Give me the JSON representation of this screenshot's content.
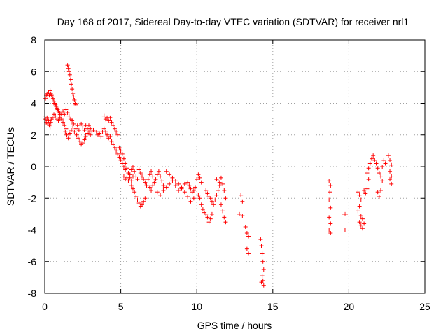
{
  "chart_data": {
    "type": "scatter",
    "title": "Day 168 of 2017, Sidereal Day-to-day VTEC variation (SDTVAR) for receiver nrl1",
    "xlabel": "GPS time / hours",
    "ylabel": "SDTVAR / TECUs",
    "xlim": [
      0,
      25
    ],
    "ylim": [
      -8,
      8
    ],
    "grid": true,
    "marker": "+",
    "marker_color": "#ff0000",
    "x_ticks": [
      {
        "value": 0,
        "label": "0"
      },
      {
        "value": 5,
        "label": "5"
      },
      {
        "value": 10,
        "label": "10"
      },
      {
        "value": 15,
        "label": "15"
      },
      {
        "value": 20,
        "label": "20"
      },
      {
        "value": 25,
        "label": "25"
      }
    ],
    "y_ticks": [
      {
        "value": -8,
        "label": "-8"
      },
      {
        "value": -6,
        "label": "-6"
      },
      {
        "value": -4,
        "label": "-4"
      },
      {
        "value": -2,
        "label": "-2"
      },
      {
        "value": 0,
        "label": "0"
      },
      {
        "value": 2,
        "label": "2"
      },
      {
        "value": 4,
        "label": "4"
      },
      {
        "value": 6,
        "label": "6"
      },
      {
        "value": 8,
        "label": "8"
      }
    ],
    "series": [
      {
        "name": "SDTVAR",
        "points": [
          [
            0.0,
            3.2
          ],
          [
            0.05,
            3.0
          ],
          [
            0.1,
            2.8
          ],
          [
            0.15,
            3.1
          ],
          [
            0.2,
            2.7
          ],
          [
            0.25,
            2.9
          ],
          [
            0.3,
            2.6
          ],
          [
            0.35,
            2.5
          ],
          [
            0.4,
            2.8
          ],
          [
            0.45,
            3.0
          ],
          [
            0.05,
            4.3
          ],
          [
            0.1,
            4.5
          ],
          [
            0.15,
            4.6
          ],
          [
            0.2,
            4.4
          ],
          [
            0.25,
            4.7
          ],
          [
            0.3,
            4.5
          ],
          [
            0.35,
            4.8
          ],
          [
            0.4,
            4.6
          ],
          [
            0.45,
            4.5
          ],
          [
            0.5,
            4.4
          ],
          [
            0.55,
            4.3
          ],
          [
            0.6,
            4.1
          ],
          [
            0.65,
            4.0
          ],
          [
            0.7,
            3.9
          ],
          [
            0.75,
            3.8
          ],
          [
            0.8,
            3.7
          ],
          [
            0.85,
            3.6
          ],
          [
            0.9,
            3.5
          ],
          [
            0.95,
            3.4
          ],
          [
            1.0,
            3.3
          ],
          [
            0.5,
            3.1
          ],
          [
            0.6,
            3.3
          ],
          [
            0.7,
            3.2
          ],
          [
            0.8,
            3.0
          ],
          [
            0.9,
            2.9
          ],
          [
            1.0,
            3.1
          ],
          [
            1.1,
            3.0
          ],
          [
            1.2,
            2.8
          ],
          [
            1.3,
            2.6
          ],
          [
            1.4,
            2.4
          ],
          [
            1.0,
            3.4
          ],
          [
            1.1,
            3.3
          ],
          [
            1.2,
            3.5
          ],
          [
            1.3,
            3.3
          ],
          [
            1.4,
            3.6
          ],
          [
            1.5,
            3.4
          ],
          [
            1.6,
            3.2
          ],
          [
            1.7,
            3.0
          ],
          [
            1.8,
            2.9
          ],
          [
            1.9,
            2.7
          ],
          [
            1.35,
            2.2
          ],
          [
            1.45,
            2.0
          ],
          [
            1.55,
            1.8
          ],
          [
            1.65,
            2.1
          ],
          [
            1.75,
            2.3
          ],
          [
            1.85,
            2.5
          ],
          [
            1.95,
            2.2
          ],
          [
            2.05,
            2.4
          ],
          [
            2.15,
            2.6
          ],
          [
            2.25,
            2.3
          ],
          [
            1.5,
            6.4
          ],
          [
            1.55,
            6.2
          ],
          [
            1.6,
            6.0
          ],
          [
            1.65,
            5.8
          ],
          [
            1.7,
            5.5
          ],
          [
            1.75,
            5.2
          ],
          [
            1.8,
            4.9
          ],
          [
            1.85,
            4.6
          ],
          [
            1.9,
            4.4
          ],
          [
            1.95,
            4.2
          ],
          [
            2.0,
            4.0
          ],
          [
            2.05,
            3.9
          ],
          [
            2.1,
            2.0
          ],
          [
            2.2,
            1.8
          ],
          [
            2.3,
            1.6
          ],
          [
            2.4,
            1.4
          ],
          [
            2.5,
            1.5
          ],
          [
            2.6,
            1.7
          ],
          [
            2.7,
            1.9
          ],
          [
            2.8,
            2.1
          ],
          [
            2.9,
            2.2
          ],
          [
            3.0,
            2.0
          ],
          [
            2.4,
            2.7
          ],
          [
            2.5,
            2.5
          ],
          [
            2.6,
            2.3
          ],
          [
            2.7,
            2.6
          ],
          [
            2.8,
            2.4
          ],
          [
            2.9,
            2.6
          ],
          [
            3.0,
            2.4
          ],
          [
            3.1,
            2.2
          ],
          [
            3.2,
            2.3
          ],
          [
            3.4,
            2.2
          ],
          [
            3.5,
            2.0
          ],
          [
            3.6,
            2.1
          ],
          [
            3.7,
            1.9
          ],
          [
            3.8,
            2.2
          ],
          [
            3.9,
            2.4
          ],
          [
            4.0,
            2.2
          ],
          [
            4.1,
            2.0
          ],
          [
            4.2,
            1.8
          ],
          [
            4.3,
            1.9
          ],
          [
            3.9,
            3.2
          ],
          [
            4.0,
            3.0
          ],
          [
            4.1,
            3.1
          ],
          [
            4.2,
            2.9
          ],
          [
            4.3,
            3.1
          ],
          [
            4.4,
            2.8
          ],
          [
            4.5,
            2.6
          ],
          [
            4.6,
            2.4
          ],
          [
            4.7,
            2.2
          ],
          [
            4.8,
            2.0
          ],
          [
            4.4,
            1.6
          ],
          [
            4.5,
            1.4
          ],
          [
            4.6,
            1.2
          ],
          [
            4.7,
            1.0
          ],
          [
            4.8,
            0.8
          ],
          [
            4.9,
            0.6
          ],
          [
            5.0,
            0.4
          ],
          [
            5.1,
            0.2
          ],
          [
            5.2,
            0.0
          ],
          [
            5.3,
            -0.2
          ],
          [
            4.9,
            1.2
          ],
          [
            5.0,
            1.0
          ],
          [
            5.1,
            0.8
          ],
          [
            5.2,
            0.5
          ],
          [
            5.3,
            0.2
          ],
          [
            5.4,
            -0.1
          ],
          [
            5.5,
            -0.4
          ],
          [
            5.6,
            -0.7
          ],
          [
            5.7,
            -0.9
          ],
          [
            5.8,
            -0.6
          ],
          [
            5.2,
            -0.6
          ],
          [
            5.3,
            -0.8
          ],
          [
            5.4,
            -0.7
          ],
          [
            5.5,
            -0.9
          ],
          [
            5.6,
            -0.5
          ],
          [
            5.7,
            -0.2
          ],
          [
            5.8,
            0.0
          ],
          [
            5.9,
            -0.3
          ],
          [
            6.0,
            -0.6
          ],
          [
            6.1,
            -0.8
          ],
          [
            5.7,
            -1.2
          ],
          [
            5.8,
            -1.4
          ],
          [
            5.9,
            -1.6
          ],
          [
            6.0,
            -1.9
          ],
          [
            6.1,
            -2.1
          ],
          [
            6.2,
            -2.3
          ],
          [
            6.3,
            -2.5
          ],
          [
            6.4,
            -2.4
          ],
          [
            6.5,
            -2.2
          ],
          [
            6.6,
            -2.0
          ],
          [
            6.2,
            -0.2
          ],
          [
            6.3,
            -0.4
          ],
          [
            6.4,
            -0.6
          ],
          [
            6.5,
            -0.8
          ],
          [
            6.6,
            -1.0
          ],
          [
            6.7,
            -1.2
          ],
          [
            6.8,
            -0.8
          ],
          [
            6.9,
            -0.5
          ],
          [
            7.0,
            -0.3
          ],
          [
            7.1,
            -0.6
          ],
          [
            6.9,
            -1.3
          ],
          [
            7.0,
            -1.5
          ],
          [
            7.1,
            -1.2
          ],
          [
            7.2,
            -1.0
          ],
          [
            7.3,
            -0.8
          ],
          [
            7.4,
            -0.5
          ],
          [
            7.5,
            -0.3
          ],
          [
            7.6,
            -0.6
          ],
          [
            7.7,
            -0.9
          ],
          [
            7.8,
            -1.2
          ],
          [
            7.4,
            -1.6
          ],
          [
            7.6,
            -1.8
          ],
          [
            7.8,
            -1.5
          ],
          [
            8.0,
            -1.3
          ],
          [
            8.2,
            -1.1
          ],
          [
            8.4,
            -0.9
          ],
          [
            8.6,
            -1.2
          ],
          [
            8.8,
            -1.5
          ],
          [
            9.0,
            -1.4
          ],
          [
            9.2,
            -1.1
          ],
          [
            8.0,
            -0.3
          ],
          [
            8.2,
            -0.5
          ],
          [
            8.4,
            -0.7
          ],
          [
            8.6,
            -0.9
          ],
          [
            8.8,
            -1.1
          ],
          [
            9.0,
            -1.3
          ],
          [
            9.2,
            -1.6
          ],
          [
            9.4,
            -1.9
          ],
          [
            9.6,
            -2.2
          ],
          [
            9.8,
            -2.0
          ],
          [
            9.4,
            -1.0
          ],
          [
            9.5,
            -1.2
          ],
          [
            9.6,
            -1.4
          ],
          [
            9.7,
            -1.6
          ],
          [
            9.8,
            -1.5
          ],
          [
            9.9,
            -1.3
          ],
          [
            10.0,
            -0.8
          ],
          [
            10.1,
            -0.5
          ],
          [
            10.2,
            -0.7
          ],
          [
            10.3,
            -1.0
          ],
          [
            10.1,
            -1.8
          ],
          [
            10.2,
            -2.0
          ],
          [
            10.3,
            -2.4
          ],
          [
            10.4,
            -2.7
          ],
          [
            10.5,
            -2.9
          ],
          [
            10.6,
            -3.0
          ],
          [
            10.7,
            -3.2
          ],
          [
            10.8,
            -3.5
          ],
          [
            10.9,
            -3.3
          ],
          [
            11.0,
            -3.0
          ],
          [
            10.6,
            -1.5
          ],
          [
            10.7,
            -1.7
          ],
          [
            10.8,
            -1.9
          ],
          [
            10.9,
            -2.0
          ],
          [
            11.0,
            -2.2
          ],
          [
            11.1,
            -2.4
          ],
          [
            11.2,
            -2.1
          ],
          [
            11.3,
            -1.8
          ],
          [
            11.4,
            -1.5
          ],
          [
            11.5,
            -1.2
          ],
          [
            11.3,
            -0.8
          ],
          [
            11.4,
            -0.9
          ],
          [
            11.5,
            -1.0
          ],
          [
            11.6,
            -0.7
          ],
          [
            11.7,
            -1.1
          ],
          [
            11.8,
            -1.5
          ],
          [
            11.9,
            -2.0
          ],
          [
            11.6,
            -2.4
          ],
          [
            11.7,
            -2.8
          ],
          [
            11.8,
            -3.2
          ],
          [
            11.9,
            -3.5
          ],
          [
            12.9,
            -1.8
          ],
          [
            13.0,
            -2.2
          ],
          [
            12.8,
            -3.0
          ],
          [
            13.0,
            -3.1
          ],
          [
            13.2,
            -3.8
          ],
          [
            13.3,
            -4.2
          ],
          [
            13.4,
            -4.4
          ],
          [
            13.3,
            -5.2
          ],
          [
            13.4,
            -5.5
          ],
          [
            14.2,
            -4.6
          ],
          [
            14.25,
            -5.0
          ],
          [
            14.3,
            -5.5
          ],
          [
            14.35,
            -6.0
          ],
          [
            14.4,
            -6.5
          ],
          [
            14.3,
            -6.9
          ],
          [
            14.35,
            -7.2
          ],
          [
            14.4,
            -7.5
          ],
          [
            14.25,
            -7.3
          ],
          [
            18.7,
            -0.9
          ],
          [
            18.8,
            -1.2
          ],
          [
            18.75,
            -1.6
          ],
          [
            18.7,
            -2.1
          ],
          [
            18.8,
            -2.6
          ],
          [
            18.7,
            -3.2
          ],
          [
            18.8,
            -3.6
          ],
          [
            18.7,
            -4.0
          ],
          [
            18.8,
            -4.2
          ],
          [
            19.7,
            -3.0
          ],
          [
            19.8,
            -3.0
          ],
          [
            19.75,
            -4.0
          ],
          [
            20.6,
            -1.6
          ],
          [
            20.7,
            -1.8
          ],
          [
            20.8,
            -2.1
          ],
          [
            20.7,
            -2.5
          ],
          [
            20.6,
            -2.8
          ],
          [
            20.8,
            -3.1
          ],
          [
            20.9,
            -3.3
          ],
          [
            20.7,
            -3.5
          ],
          [
            20.8,
            -3.7
          ],
          [
            20.9,
            -3.9
          ],
          [
            21.0,
            -3.6
          ],
          [
            21.0,
            -1.5
          ],
          [
            21.1,
            -1.7
          ],
          [
            21.2,
            -1.4
          ],
          [
            21.3,
            -0.8
          ],
          [
            21.2,
            -0.4
          ],
          [
            21.3,
            -0.1
          ],
          [
            21.4,
            0.2
          ],
          [
            21.5,
            0.5
          ],
          [
            21.6,
            0.7
          ],
          [
            21.7,
            0.4
          ],
          [
            21.8,
            0.2
          ],
          [
            21.9,
            -0.1
          ],
          [
            22.0,
            -0.4
          ],
          [
            22.1,
            -0.6
          ],
          [
            22.2,
            -0.9
          ],
          [
            21.9,
            -1.6
          ],
          [
            22.0,
            -1.9
          ],
          [
            22.1,
            -1.5
          ],
          [
            22.3,
            0.4
          ],
          [
            22.4,
            0.2
          ],
          [
            22.2,
            0.0
          ],
          [
            22.6,
            0.7
          ],
          [
            22.7,
            0.4
          ],
          [
            22.8,
            0.1
          ],
          [
            22.7,
            -0.3
          ],
          [
            22.8,
            -0.6
          ],
          [
            22.7,
            -0.8
          ],
          [
            22.8,
            -1.1
          ]
        ]
      }
    ]
  }
}
